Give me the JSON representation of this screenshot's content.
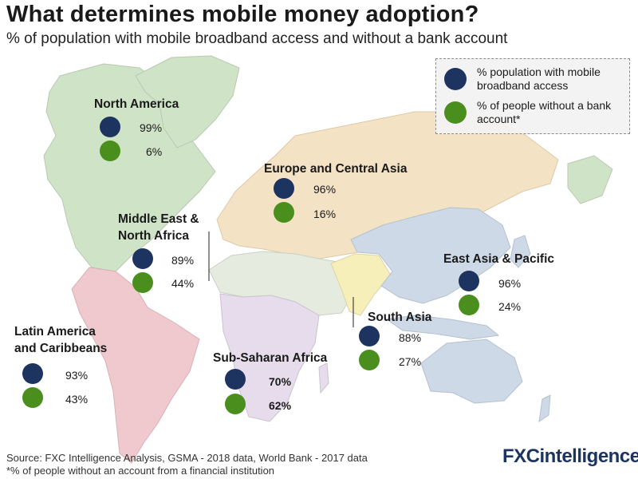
{
  "header": {
    "title": "What determines mobile money adoption?",
    "subtitle": "% of population with mobile broadband access and without a bank account"
  },
  "colors": {
    "broadband": "#1d3461",
    "unbanked": "#4a8f1d",
    "north_america": "#cfe3c6",
    "latin_america": "#efc9cd",
    "europe_central_asia": "#f3e2c4",
    "middle_east_north_africa": "#e6ebe0",
    "sub_saharan_africa": "#e7dceb",
    "south_asia": "#f6efb9",
    "east_asia_pacific": "#cdd9e7"
  },
  "legend": {
    "items": [
      {
        "label": "% population with mobile broadband access",
        "color": "#1d3461"
      },
      {
        "label": "% of people without a bank account*",
        "color": "#4a8f1d"
      }
    ]
  },
  "regions": {
    "north_america": {
      "name": "North America",
      "broadband": "99%",
      "unbanked": "6%"
    },
    "europe_central_asia": {
      "name": "Europe and Central Asia",
      "broadband": "96%",
      "unbanked": "16%"
    },
    "middle_east_north_africa": {
      "name_line1": "Middle East &",
      "name_line2": "North Africa",
      "broadband": "89%",
      "unbanked": "44%"
    },
    "east_asia_pacific": {
      "name": "East Asia & Pacific",
      "broadband": "96%",
      "unbanked": "24%"
    },
    "south_asia": {
      "name": "South Asia",
      "broadband": "88%",
      "unbanked": "27%"
    },
    "latin_america": {
      "name_line1": "Latin America",
      "name_line2": "and Caribbeans",
      "broadband": "93%",
      "unbanked": "43%"
    },
    "sub_saharan_africa": {
      "name": "Sub-Saharan Africa",
      "broadband": "70%",
      "unbanked": "62%"
    }
  },
  "footer": {
    "source": "Source: FXC Intelligence Analysis, GSMA - 2018 data, World Bank - 2017 data",
    "note": "*% of people without an account from a financial institution"
  },
  "logo": {
    "part1": "FXC",
    "part2": "intelligence"
  }
}
